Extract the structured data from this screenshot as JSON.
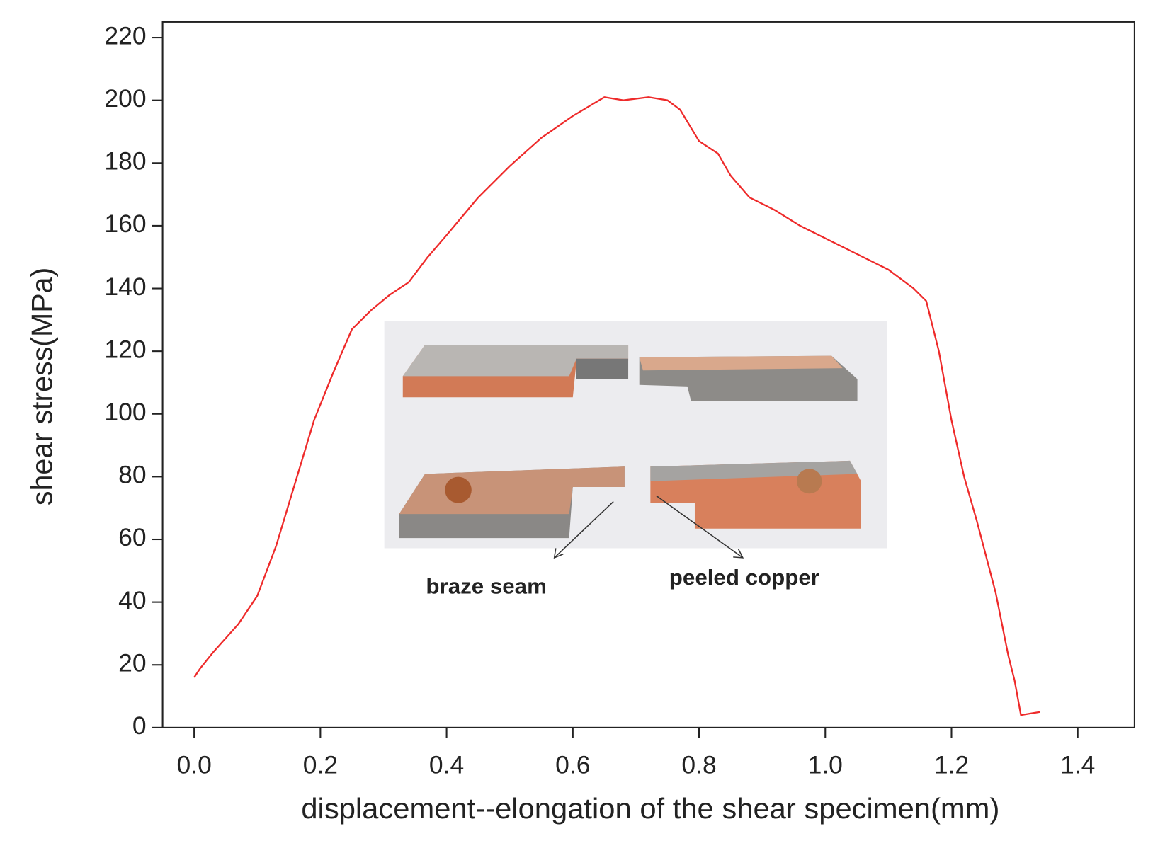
{
  "chart_data": {
    "type": "line",
    "x_label": "displacement--elongation of the shear specimen(mm)",
    "y_label": "shear stress(MPa)",
    "annotations": [
      "braze seam",
      "peeled copper"
    ],
    "xlim": [
      -0.05,
      1.49
    ],
    "ylim": [
      0,
      225
    ],
    "xticks": [
      {
        "value": 0,
        "label": "0.0"
      },
      0.2,
      0.4,
      0.6,
      0.8,
      {
        "value": 1,
        "label": "1.0"
      },
      1.2,
      1.4
    ],
    "yticks": [
      0,
      20,
      40,
      60,
      80,
      100,
      120,
      140,
      160,
      180,
      200,
      220
    ],
    "x": [
      0.0,
      0.01,
      0.03,
      0.07,
      0.1,
      0.13,
      0.16,
      0.19,
      0.22,
      0.25,
      0.28,
      0.31,
      0.34,
      0.37,
      0.4,
      0.45,
      0.5,
      0.55,
      0.6,
      0.65,
      0.68,
      0.72,
      0.75,
      0.77,
      0.8,
      0.83,
      0.85,
      0.88,
      0.92,
      0.96,
      1.0,
      1.05,
      1.1,
      1.14,
      1.16,
      1.18,
      1.2,
      1.22,
      1.24,
      1.27,
      1.29,
      1.3,
      1.31,
      1.34
    ],
    "series": [
      {
        "color": "#ee2a2a",
        "values": [
          16,
          19,
          24,
          33,
          42,
          58,
          78,
          98,
          113,
          127,
          133,
          138,
          142,
          150,
          157,
          169,
          179,
          188,
          195,
          201,
          200,
          201,
          200,
          197,
          187,
          183,
          176,
          169,
          165,
          160,
          156,
          151,
          146,
          140,
          136,
          120,
          98,
          80,
          66,
          43,
          23,
          15,
          4,
          5
        ]
      }
    ]
  }
}
